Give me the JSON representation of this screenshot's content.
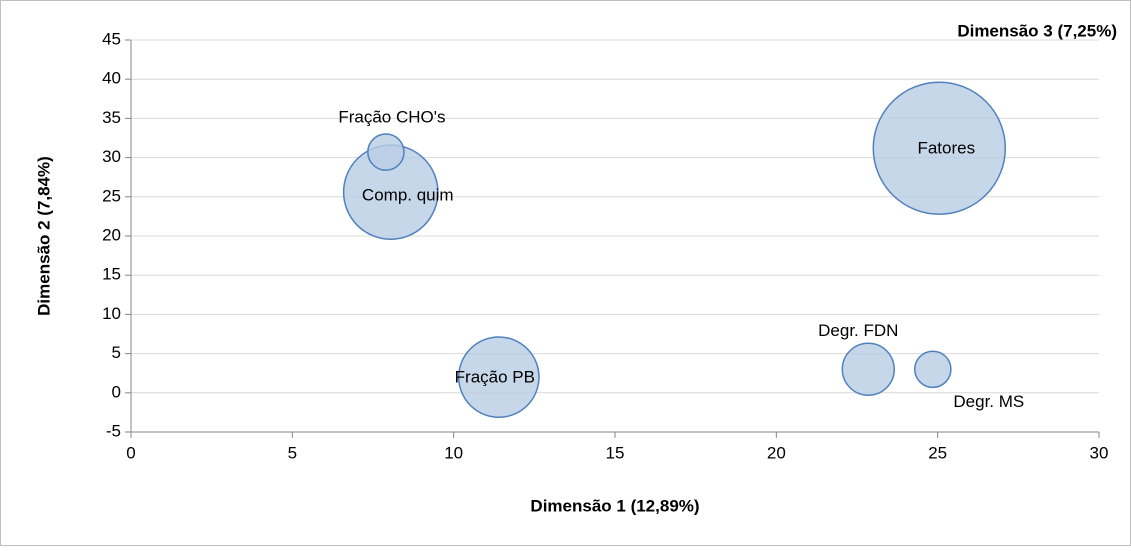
{
  "chart_data": {
    "type": "bubble",
    "title": "Dimensão 3 (7,25%)",
    "x_label": "Dimensão 1 (12,89%)",
    "y_label": "Dimensão 2 (7,84%)",
    "labels": [
      "Comp. quim",
      "Fração CHO's",
      "Fatores",
      "Fração PB",
      "Degr. FDN",
      "Degr. MS"
    ],
    "x": [
      8.05,
      7.9,
      25.05,
      11.4,
      22.85,
      24.85
    ],
    "y": [
      25.6,
      30.7,
      31.2,
      2.0,
      3.0,
      3.0
    ],
    "sizes": [
      5.1,
      0.75,
      10,
      3.7,
      1.55,
      0.75
    ],
    "color": "#b9cde5",
    "xlim": [
      0,
      30
    ],
    "xticks": [
      0,
      5,
      10,
      15,
      20,
      25,
      30
    ],
    "ylim": [
      -5,
      45
    ],
    "yticks": [
      -5,
      0,
      5,
      10,
      15,
      20,
      25,
      30,
      35,
      40,
      45
    ],
    "grid": true
  }
}
